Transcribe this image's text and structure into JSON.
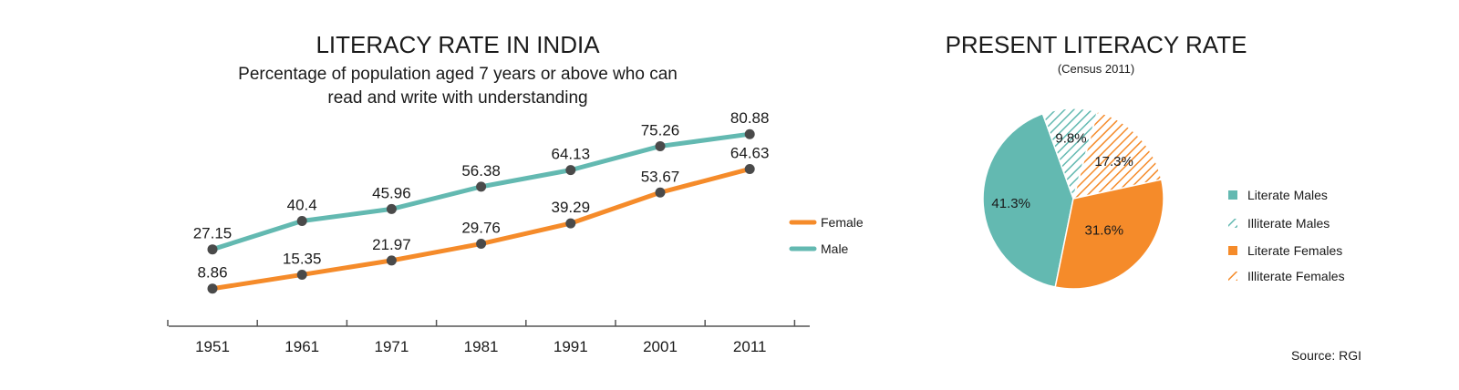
{
  "line_chart": {
    "title": "LITERACY RATE IN INDIA",
    "subtitle_line1": "Percentage of population aged 7 years or above who can",
    "subtitle_line2": "read and write with understanding"
  },
  "pie_chart": {
    "title": "PRESENT LITERACY RATE",
    "subtitle": "(Census 2011)"
  },
  "source": "Source: RGI",
  "colors": {
    "male": "#63b9b1",
    "female": "#f58b2a",
    "marker": "#4a4a4a",
    "axis": "#555555"
  },
  "chart_data": [
    {
      "type": "line",
      "title": "LITERACY RATE IN INDIA",
      "categories": [
        "1951",
        "1961",
        "1971",
        "1981",
        "1991",
        "2001",
        "2011"
      ],
      "series": [
        {
          "name": "Male",
          "values": [
            27.15,
            40.4,
            45.96,
            56.38,
            64.13,
            75.26,
            80.88
          ],
          "labels": [
            "27.15",
            "40.4",
            "45.96",
            "56.38",
            "64.13",
            "75.26",
            "80.88"
          ]
        },
        {
          "name": "Female",
          "values": [
            8.86,
            15.35,
            21.97,
            29.76,
            39.29,
            53.67,
            64.63
          ],
          "labels": [
            "8.86",
            "15.35",
            "21.97",
            "29.76",
            "39.29",
            "53.67",
            "64.63"
          ]
        }
      ],
      "legend": [
        "Female",
        "Male"
      ],
      "legend_position": "right",
      "grid": false
    },
    {
      "type": "pie",
      "title": "PRESENT LITERACY RATE",
      "subtitle": "(Census 2011)",
      "slices": [
        {
          "name": "Literate Males",
          "value": 41.3,
          "label": "41.3%",
          "hatched": false,
          "color": "#63b9b1"
        },
        {
          "name": "Illiterate Males",
          "value": 9.8,
          "label": "9.8%",
          "hatched": true,
          "color": "#63b9b1"
        },
        {
          "name": "Illiterate Females",
          "value": 17.3,
          "label": "17.3%",
          "hatched": true,
          "color": "#f58b2a"
        },
        {
          "name": "Literate Females",
          "value": 31.6,
          "label": "31.6%",
          "hatched": false,
          "color": "#f58b2a"
        }
      ],
      "legend": [
        {
          "label": "Literate Males",
          "color": "#63b9b1",
          "hatched": false
        },
        {
          "label": "Illiterate Males",
          "color": "#63b9b1",
          "hatched": true
        },
        {
          "label": "Literate Females",
          "color": "#f58b2a",
          "hatched": false
        },
        {
          "label": "Illiterate Females",
          "color": "#f58b2a",
          "hatched": true
        }
      ],
      "legend_position": "right"
    }
  ]
}
